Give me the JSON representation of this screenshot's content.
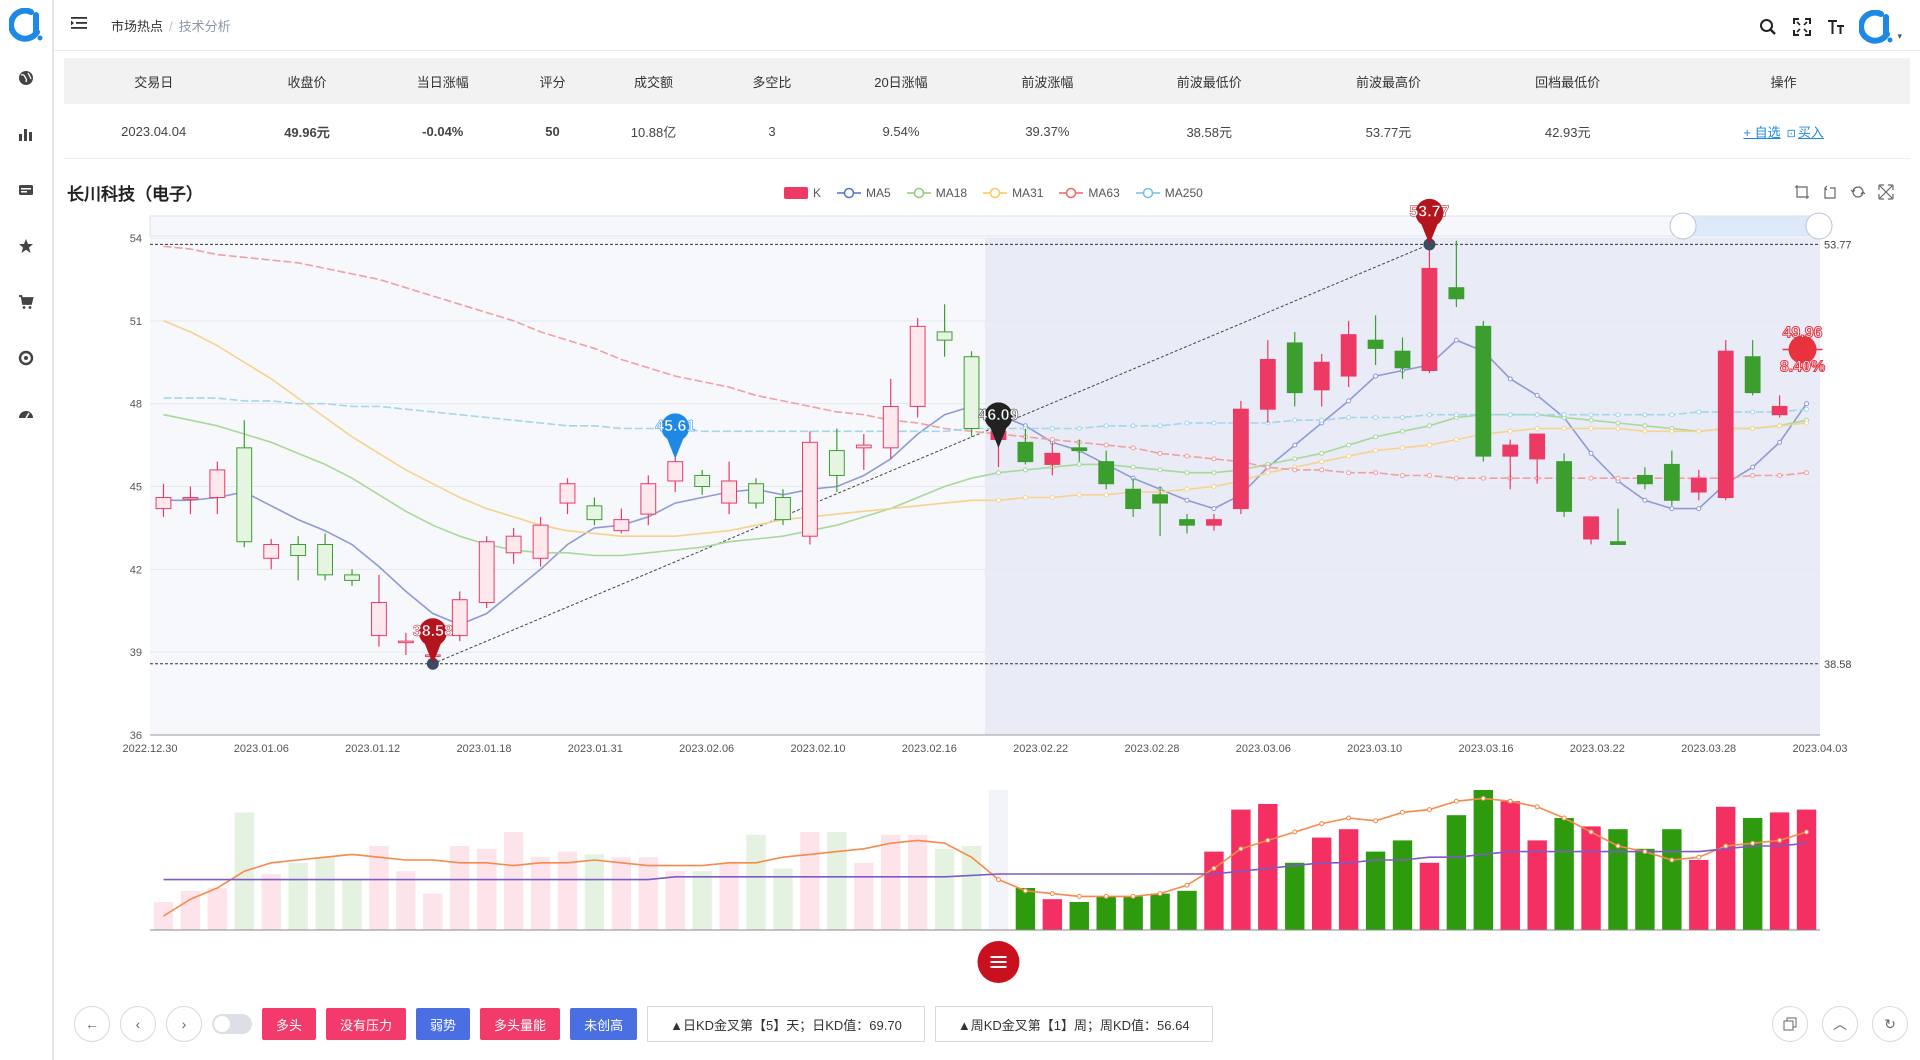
{
  "sidebar": {
    "items": [
      {
        "icon": "globe-icon"
      },
      {
        "icon": "bar-chart-icon"
      },
      {
        "icon": "card-icon"
      },
      {
        "icon": "star-icon"
      },
      {
        "icon": "cart-icon"
      },
      {
        "icon": "target-icon"
      },
      {
        "icon": "dashboard-icon"
      }
    ]
  },
  "breadcrumb": {
    "root": "市场热点",
    "sep": "/",
    "current": "技术分析"
  },
  "summary": {
    "headers": [
      "交易日",
      "收盘价",
      "当日涨幅",
      "评分",
      "成交额",
      "多空比",
      "20日涨幅",
      "前波涨幅",
      "前波最低价",
      "前波最高价",
      "回档最低价",
      "操作"
    ],
    "row": {
      "date": "2023.04.04",
      "close": "49.96元",
      "change": "-0.04%",
      "score": "50",
      "turnover": "10.88亿",
      "ratio": "3",
      "change20": "9.54%",
      "prev_wave_change": "39.37%",
      "prev_wave_low": "38.58元",
      "prev_wave_high": "53.77元",
      "pullback_low": "42.93元",
      "op_watch": "+ 自选",
      "op_buy": "买入"
    }
  },
  "chart_title": "长川科技（电子）",
  "legend": [
    {
      "name": "K",
      "color": "#ec3a65"
    },
    {
      "name": "MA5",
      "color": "#5470c6"
    },
    {
      "name": "MA18",
      "color": "#91cc75"
    },
    {
      "name": "MA31",
      "color": "#fac858"
    },
    {
      "name": "MA63",
      "color": "#ee6666"
    },
    {
      "name": "MA250",
      "color": "#73c0de"
    }
  ],
  "markers": {
    "low": "38.58",
    "high": "53.77",
    "point_mid": "45.61",
    "point_black": "46.09",
    "last_price": "49.96",
    "last_pct": "8.40%",
    "hi_line": "53.77",
    "lo_line": "38.58"
  },
  "chart_data": {
    "type": "candlestick",
    "ylim": [
      36,
      54
    ],
    "yticks": [
      "54",
      "51",
      "48",
      "45",
      "42",
      "39",
      "36"
    ],
    "xticks": [
      "2022.12.30",
      "2023.01.06",
      "2023.01.12",
      "2023.01.18",
      "2023.01.31",
      "2023.02.06",
      "2023.02.10",
      "2023.02.16",
      "2023.02.22",
      "2023.02.28",
      "2023.03.06",
      "2023.03.10",
      "2023.03.16",
      "2023.03.22",
      "2023.03.28",
      "2023.04.03"
    ],
    "candles": [
      [
        44.2,
        44.6,
        43.9,
        45.1
      ],
      [
        44.6,
        44.6,
        44.0,
        45.0
      ],
      [
        44.6,
        45.6,
        44.0,
        45.9
      ],
      [
        46.4,
        43.0,
        42.8,
        47.4
      ],
      [
        42.4,
        42.9,
        42.0,
        43.1
      ],
      [
        42.9,
        42.5,
        41.6,
        43.2
      ],
      [
        42.9,
        41.8,
        41.6,
        43.3
      ],
      [
        41.8,
        41.6,
        41.4,
        42.0
      ],
      [
        39.6,
        40.8,
        39.2,
        41.8
      ],
      [
        39.4,
        39.4,
        38.9,
        39.7
      ],
      [
        38.9,
        38.9,
        38.6,
        39.5
      ],
      [
        39.6,
        40.9,
        39.4,
        41.2
      ],
      [
        40.8,
        43.0,
        40.6,
        43.2
      ],
      [
        42.6,
        43.2,
        42.2,
        43.5
      ],
      [
        42.4,
        43.6,
        42.1,
        43.9
      ],
      [
        44.4,
        45.1,
        44.0,
        45.3
      ],
      [
        44.3,
        43.8,
        43.6,
        44.6
      ],
      [
        43.4,
        43.8,
        43.3,
        44.2
      ],
      [
        44.0,
        45.1,
        43.6,
        45.4
      ],
      [
        45.2,
        45.9,
        44.8,
        46.2
      ],
      [
        45.4,
        45.0,
        44.7,
        45.6
      ],
      [
        44.4,
        45.2,
        44.0,
        45.9
      ],
      [
        45.1,
        44.4,
        44.2,
        45.3
      ],
      [
        44.6,
        43.8,
        43.6,
        44.9
      ],
      [
        43.2,
        46.6,
        42.9,
        47.0
      ],
      [
        46.3,
        45.4,
        44.8,
        47.1
      ],
      [
        46.4,
        46.5,
        45.6,
        46.9
      ],
      [
        46.4,
        47.9,
        46.0,
        48.9
      ],
      [
        47.9,
        50.8,
        47.5,
        51.1
      ],
      [
        50.6,
        50.3,
        49.7,
        51.6
      ],
      [
        49.7,
        47.1,
        46.8,
        49.9
      ],
      [
        46.7,
        47.0,
        45.7,
        47.4
      ],
      [
        46.6,
        45.9,
        45.8,
        47.1
      ],
      [
        45.8,
        46.2,
        45.4,
        46.6
      ],
      [
        46.4,
        46.3,
        45.9,
        46.7
      ],
      [
        45.9,
        45.1,
        44.9,
        46.3
      ],
      [
        44.9,
        44.2,
        43.9,
        45.3
      ],
      [
        44.7,
        44.4,
        43.2,
        45.0
      ],
      [
        43.8,
        43.6,
        43.3,
        44.0
      ],
      [
        43.6,
        43.8,
        43.4,
        44.0
      ],
      [
        44.2,
        47.8,
        44.0,
        48.1
      ],
      [
        47.8,
        49.6,
        47.3,
        50.3
      ],
      [
        50.2,
        48.4,
        47.9,
        50.6
      ],
      [
        48.5,
        49.5,
        47.9,
        49.8
      ],
      [
        49.0,
        50.5,
        48.6,
        51.0
      ],
      [
        50.3,
        50.0,
        49.4,
        51.2
      ],
      [
        49.9,
        49.3,
        48.9,
        50.4
      ],
      [
        49.2,
        52.9,
        49.1,
        53.8
      ],
      [
        52.2,
        51.8,
        51.5,
        53.9
      ],
      [
        50.8,
        46.1,
        45.9,
        51.0
      ],
      [
        46.1,
        46.5,
        44.9,
        46.7
      ],
      [
        46.0,
        46.9,
        45.1,
        46.8
      ],
      [
        45.9,
        44.1,
        43.9,
        46.2
      ],
      [
        43.1,
        43.9,
        42.9,
        43.9
      ],
      [
        43.0,
        42.9,
        42.9,
        44.2
      ],
      [
        45.4,
        45.1,
        44.9,
        45.7
      ],
      [
        45.8,
        44.5,
        44.3,
        46.3
      ],
      [
        44.8,
        45.3,
        44.5,
        45.6
      ],
      [
        44.6,
        49.9,
        44.5,
        50.3
      ],
      [
        49.7,
        48.4,
        48.3,
        50.3
      ],
      [
        47.6,
        47.9,
        47.5,
        48.3
      ],
      [
        49.9,
        49.9,
        49.2,
        50.2
      ]
    ],
    "series": [
      {
        "name": "MA5",
        "values": [
          44.5,
          44.5,
          44.6,
          44.8,
          44.3,
          43.8,
          43.4,
          42.9,
          42.1,
          41.2,
          40.4,
          40.0,
          40.4,
          41.2,
          42.0,
          42.9,
          43.5,
          43.6,
          43.9,
          44.4,
          44.6,
          44.8,
          44.9,
          44.7,
          44.9,
          45.0,
          45.4,
          46.0,
          46.9,
          47.6,
          47.9,
          47.6,
          47.2,
          46.6,
          46.3,
          45.8,
          45.3,
          44.9,
          44.5,
          44.2,
          44.7,
          45.7,
          46.5,
          47.3,
          48.1,
          49.0,
          49.2,
          49.4,
          50.3,
          49.9,
          48.9,
          48.3,
          47.5,
          46.2,
          45.2,
          44.5,
          44.2,
          44.2,
          45.1,
          45.7,
          46.6,
          48.0
        ]
      },
      {
        "name": "MA18",
        "values": [
          47.6,
          47.4,
          47.2,
          46.9,
          46.6,
          46.2,
          45.8,
          45.3,
          44.7,
          44.1,
          43.6,
          43.2,
          42.9,
          42.7,
          42.6,
          42.6,
          42.5,
          42.5,
          42.6,
          42.7,
          42.8,
          43.0,
          43.1,
          43.2,
          43.4,
          43.6,
          43.9,
          44.2,
          44.6,
          45.0,
          45.3,
          45.5,
          45.6,
          45.7,
          45.8,
          45.8,
          45.7,
          45.6,
          45.5,
          45.5,
          45.6,
          45.8,
          46.0,
          46.2,
          46.5,
          46.8,
          47.0,
          47.2,
          47.5,
          47.6,
          47.6,
          47.6,
          47.5,
          47.4,
          47.3,
          47.2,
          47.1,
          47.0,
          47.1,
          47.1,
          47.2,
          47.4
        ]
      },
      {
        "name": "MA31",
        "values": [
          51.0,
          50.6,
          50.1,
          49.5,
          48.9,
          48.2,
          47.5,
          46.8,
          46.2,
          45.6,
          45.1,
          44.6,
          44.2,
          43.9,
          43.6,
          43.4,
          43.3,
          43.2,
          43.2,
          43.2,
          43.3,
          43.4,
          43.6,
          43.8,
          43.9,
          44.0,
          44.1,
          44.2,
          44.3,
          44.4,
          44.5,
          44.5,
          44.6,
          44.6,
          44.7,
          44.7,
          44.8,
          44.8,
          44.9,
          45.0,
          45.2,
          45.5,
          45.7,
          45.9,
          46.1,
          46.3,
          46.4,
          46.5,
          46.7,
          46.9,
          47.0,
          47.1,
          47.1,
          47.1,
          47.1,
          47.0,
          47.0,
          47.0,
          47.1,
          47.1,
          47.2,
          47.3
        ]
      },
      {
        "name": "MA63",
        "values": [
          53.7,
          53.6,
          53.4,
          53.3,
          53.2,
          53.1,
          52.9,
          52.7,
          52.5,
          52.2,
          51.9,
          51.6,
          51.3,
          51.0,
          50.6,
          50.3,
          50.0,
          49.6,
          49.3,
          49.0,
          48.8,
          48.6,
          48.3,
          48.1,
          47.9,
          47.7,
          47.6,
          47.4,
          47.3,
          47.1,
          47.0,
          46.9,
          46.8,
          46.7,
          46.6,
          46.5,
          46.4,
          46.2,
          46.1,
          46.0,
          45.9,
          45.7,
          45.6,
          45.6,
          45.5,
          45.5,
          45.4,
          45.4,
          45.3,
          45.3,
          45.3,
          45.3,
          45.3,
          45.3,
          45.3,
          45.3,
          45.3,
          45.3,
          45.3,
          45.4,
          45.4,
          45.5
        ]
      },
      {
        "name": "MA250",
        "values": [
          48.2,
          48.2,
          48.2,
          48.1,
          48.1,
          48.0,
          48.0,
          47.9,
          47.9,
          47.8,
          47.7,
          47.6,
          47.5,
          47.4,
          47.3,
          47.2,
          47.2,
          47.1,
          47.1,
          47.1,
          47.0,
          47.0,
          47.0,
          47.0,
          47.0,
          47.0,
          47.0,
          47.0,
          47.0,
          47.0,
          47.1,
          47.1,
          47.1,
          47.1,
          47.1,
          47.2,
          47.2,
          47.2,
          47.3,
          47.3,
          47.3,
          47.3,
          47.4,
          47.4,
          47.5,
          47.5,
          47.5,
          47.6,
          47.6,
          47.6,
          47.6,
          47.6,
          47.6,
          47.6,
          47.6,
          47.6,
          47.6,
          47.7,
          47.7,
          47.7,
          47.7,
          47.8
        ]
      }
    ],
    "volume": [
      20,
      28,
      30,
      84,
      40,
      48,
      52,
      36,
      60,
      42,
      26,
      60,
      58,
      70,
      52,
      56,
      54,
      52,
      52,
      42,
      42,
      48,
      68,
      44,
      70,
      70,
      48,
      68,
      68,
      58,
      60,
      0,
      30,
      22,
      20,
      24,
      24,
      26,
      28,
      56,
      86,
      90,
      48,
      66,
      72,
      56,
      64,
      48,
      82,
      100,
      92,
      64,
      80,
      74,
      72,
      58,
      72,
      50,
      88,
      80,
      84,
      86
    ],
    "volume_ma1": [
      10,
      22,
      30,
      42,
      48,
      50,
      52,
      54,
      52,
      50,
      50,
      48,
      48,
      46,
      48,
      48,
      50,
      48,
      46,
      46,
      46,
      48,
      48,
      52,
      54,
      56,
      58,
      62,
      64,
      62,
      52,
      36,
      28,
      26,
      24,
      24,
      24,
      26,
      32,
      44,
      58,
      64,
      70,
      76,
      80,
      78,
      84,
      86,
      92,
      94,
      92,
      88,
      80,
      70,
      60,
      56,
      50,
      52,
      60,
      62,
      64,
      70
    ],
    "volume_ma2": [
      36,
      36,
      36,
      36,
      36,
      36,
      36,
      36,
      36,
      36,
      36,
      36,
      36,
      36,
      36,
      36,
      36,
      36,
      36,
      38,
      38,
      38,
      38,
      38,
      38,
      38,
      38,
      38,
      38,
      38,
      39,
      40,
      40,
      40,
      40,
      40,
      40,
      40,
      40,
      40,
      42,
      44,
      46,
      48,
      48,
      50,
      50,
      52,
      52,
      54,
      56,
      56,
      56,
      56,
      56,
      56,
      56,
      56,
      58,
      60,
      60,
      62
    ]
  },
  "bottom": {
    "tags": [
      {
        "label": "多头",
        "style": "r"
      },
      {
        "label": "没有压力",
        "style": "r"
      },
      {
        "label": "弱势",
        "style": "b"
      },
      {
        "label": "多头量能",
        "style": "r"
      },
      {
        "label": "未创高",
        "style": "b"
      }
    ],
    "info1": "▲日KD金叉第【5】天；日KD值：69.70",
    "info2": "▲周KD金叉第【1】周；周KD值：56.64"
  }
}
